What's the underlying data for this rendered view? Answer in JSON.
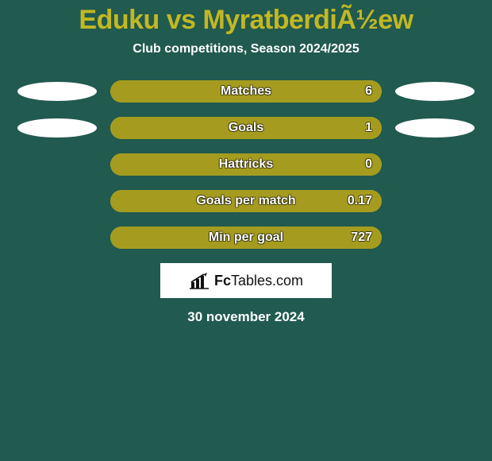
{
  "colors": {
    "background": "#215a4f",
    "title": "#c2b823",
    "subtitle": "#ffffff",
    "bar_bg": "#c2b823",
    "bar_fill": "#a59c1f",
    "bar_text": "#ffffff",
    "ellipse": "#ffffff",
    "logo_bg": "#ffffff",
    "logo_text": "#111111",
    "date_text": "#ffffff"
  },
  "title": {
    "text": "Eduku vs MyratberdiÃ½ew",
    "fontsize": 34
  },
  "subtitle": {
    "text": "Club competitions, Season 2024/2025",
    "fontsize": 16
  },
  "ellipse_size": {
    "w": 100,
    "h": 24
  },
  "bar_track_width": 342,
  "stats": [
    {
      "label": "Matches",
      "value": "6",
      "value_num": 6,
      "max": 6,
      "fill_ratio": 1.0,
      "left_ellipse": true,
      "right_ellipse": true
    },
    {
      "label": "Goals",
      "value": "1",
      "value_num": 1,
      "max": 1,
      "fill_ratio": 1.0,
      "left_ellipse": true,
      "right_ellipse": true
    },
    {
      "label": "Hattricks",
      "value": "0",
      "value_num": 0,
      "max": 1,
      "fill_ratio": 1.0,
      "left_ellipse": false,
      "right_ellipse": false
    },
    {
      "label": "Goals per match",
      "value": "0.17",
      "value_num": 0.17,
      "max": 1,
      "fill_ratio": 1.0,
      "left_ellipse": false,
      "right_ellipse": false
    },
    {
      "label": "Min per goal",
      "value": "727",
      "value_num": 727,
      "max": 727,
      "fill_ratio": 1.0,
      "left_ellipse": false,
      "right_ellipse": false
    }
  ],
  "logo": {
    "brand_prefix": "Fc",
    "brand_suffix": "Tables.com"
  },
  "date": "30 november 2024"
}
